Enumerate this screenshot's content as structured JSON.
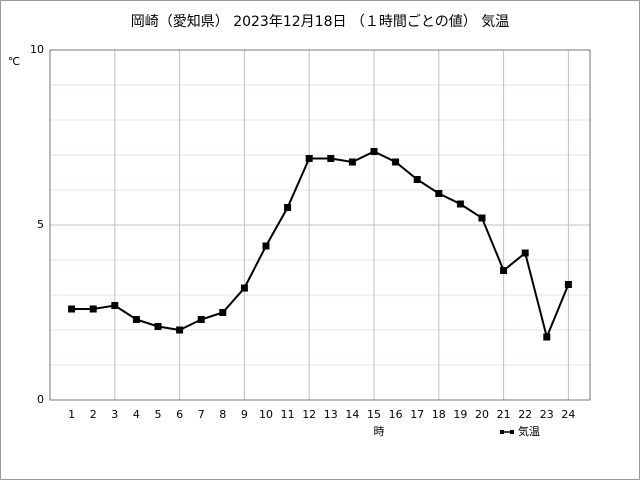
{
  "chart_data": {
    "type": "line",
    "title": "岡崎（愛知県）  2023年12月18日  （１時間ごとの値）  気温",
    "y_label": "℃",
    "x_label": "時",
    "x": [
      1,
      2,
      3,
      4,
      5,
      6,
      7,
      8,
      9,
      10,
      11,
      12,
      13,
      14,
      15,
      16,
      17,
      18,
      19,
      20,
      21,
      22,
      23,
      24
    ],
    "series": [
      {
        "name": "気温",
        "color": "#000000",
        "values": [
          2.6,
          2.6,
          2.7,
          2.3,
          2.1,
          2.0,
          2.3,
          2.5,
          3.2,
          4.4,
          5.5,
          6.9,
          6.9,
          6.8,
          7.1,
          6.8,
          6.3,
          5.9,
          5.6,
          5.2,
          3.7,
          4.2,
          1.8,
          3.3
        ]
      }
    ],
    "xlim": [
      0,
      25
    ],
    "xticks": [
      1,
      2,
      3,
      4,
      5,
      6,
      7,
      8,
      9,
      10,
      11,
      12,
      13,
      14,
      15,
      16,
      17,
      18,
      19,
      20,
      21,
      22,
      23,
      24
    ],
    "x_grid": [
      3,
      6,
      9,
      12,
      15,
      18,
      21,
      24
    ],
    "ylim": [
      0,
      10
    ],
    "yticks": [
      0,
      5,
      10
    ],
    "y_minor_grid": [
      1,
      2,
      3,
      4,
      6,
      7,
      8,
      9
    ],
    "grid": true,
    "legend": "bottom-right"
  }
}
